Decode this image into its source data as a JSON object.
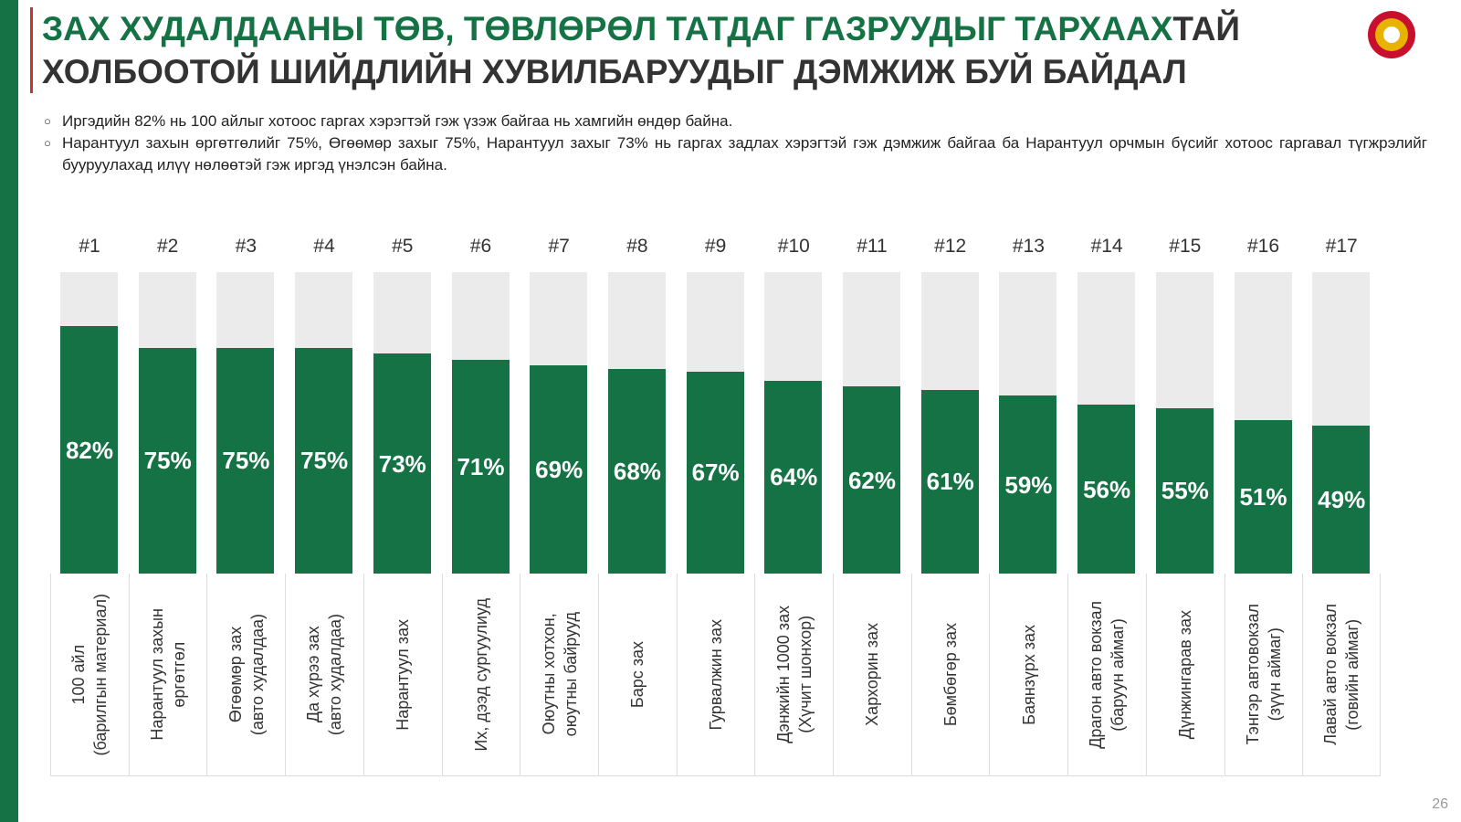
{
  "header": {
    "title_highlight": "ЗАХ ХУДАЛДААНЫ ТӨВ, ТӨВЛӨРӨЛ ТАТДАГ ГАЗРУУДЫГ ТАРХААХ",
    "title_rest": "ТАЙ ХОЛБООТОЙ ШИЙДЛИЙН ХУВИЛБАРУУДЫГ ДЭМЖИЖ БУЙ БАЙДАЛ"
  },
  "bullets": [
    "Иргэдийн 82% нь 100 айлыг хотоос гаргах хэрэгтэй гэж үзэж байгаа нь хамгийн өндөр байна.",
    "Нарантуул захын өргөтгөлийг 75%, Өгөөмөр захыг 75%, Нарантуул захыг 73% нь гаргах задлах хэрэгтэй гэж дэмжиж байгаа ба Нарантуул орчмын бүсийг хотоос гаргавал түгжрэлийг бууруулахад илүү нөлөөтэй гэж иргэд үнэлсэн байна."
  ],
  "chart_data": {
    "type": "bar",
    "color": "#157244",
    "background_color": "#ebebeb",
    "ylim": [
      0,
      100
    ],
    "ranks": [
      "#1",
      "#2",
      "#3",
      "#4",
      "#5",
      "#6",
      "#7",
      "#8",
      "#9",
      "#10",
      "#11",
      "#12",
      "#13",
      "#14",
      "#15",
      "#16",
      "#17"
    ],
    "categories": [
      "100 айл\n(барилгын материал)",
      "Нарантуул захын\nөргөтгөл",
      "Өгөөмөр зах\n(авто худалдаа)",
      "Да хүрээ зах\n(авто худалдаа)",
      "Нарантуул зах",
      "Их, дээд сургуулиуд",
      "Оюутны хотхон,\nоюутны байрууд",
      "Барс зах",
      "Гурвалжин зах",
      "Дэнжийн 1000 зах\n(Хүчит шонхор)",
      "Хархорин зах",
      "Бөмбөгөр зах",
      "Баянзүрх зах",
      "Драгон авто вокзал\n(баруун аймаг)",
      "Дүнжингарав зах",
      "Тэнгэр автовокзал\n(зүүн аймаг)",
      "Лавай авто вокзал\n(говийн аймаг)"
    ],
    "values": [
      82,
      75,
      75,
      75,
      73,
      71,
      69,
      68,
      67,
      64,
      62,
      61,
      59,
      56,
      55,
      51,
      49
    ],
    "value_labels": [
      "82%",
      "75%",
      "75%",
      "75%",
      "73%",
      "71%",
      "69%",
      "68%",
      "67%",
      "64%",
      "62%",
      "61%",
      "59%",
      "56%",
      "55%",
      "51%",
      "49%"
    ]
  },
  "page_number": "26"
}
